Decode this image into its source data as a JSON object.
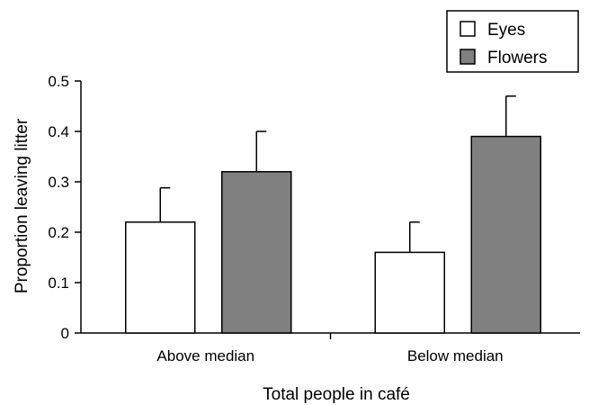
{
  "chart_data": {
    "type": "bar",
    "categories": [
      "Above median",
      "Below median"
    ],
    "series": [
      {
        "name": "Eyes",
        "values": [
          0.22,
          0.16
        ],
        "errors": [
          0.068,
          0.06
        ],
        "color": "#ffffff"
      },
      {
        "name": "Flowers",
        "values": [
          0.32,
          0.39
        ],
        "errors": [
          0.08,
          0.08
        ],
        "color": "#808080"
      }
    ],
    "xlabel": "Total people in café",
    "ylabel": "Proportion leaving litter",
    "ylim": [
      0,
      0.5
    ],
    "yticks": [
      "0",
      "0.1",
      "0.2",
      "0.3",
      "0.4",
      "0.5"
    ],
    "legend": "top-right",
    "grid": false
  }
}
